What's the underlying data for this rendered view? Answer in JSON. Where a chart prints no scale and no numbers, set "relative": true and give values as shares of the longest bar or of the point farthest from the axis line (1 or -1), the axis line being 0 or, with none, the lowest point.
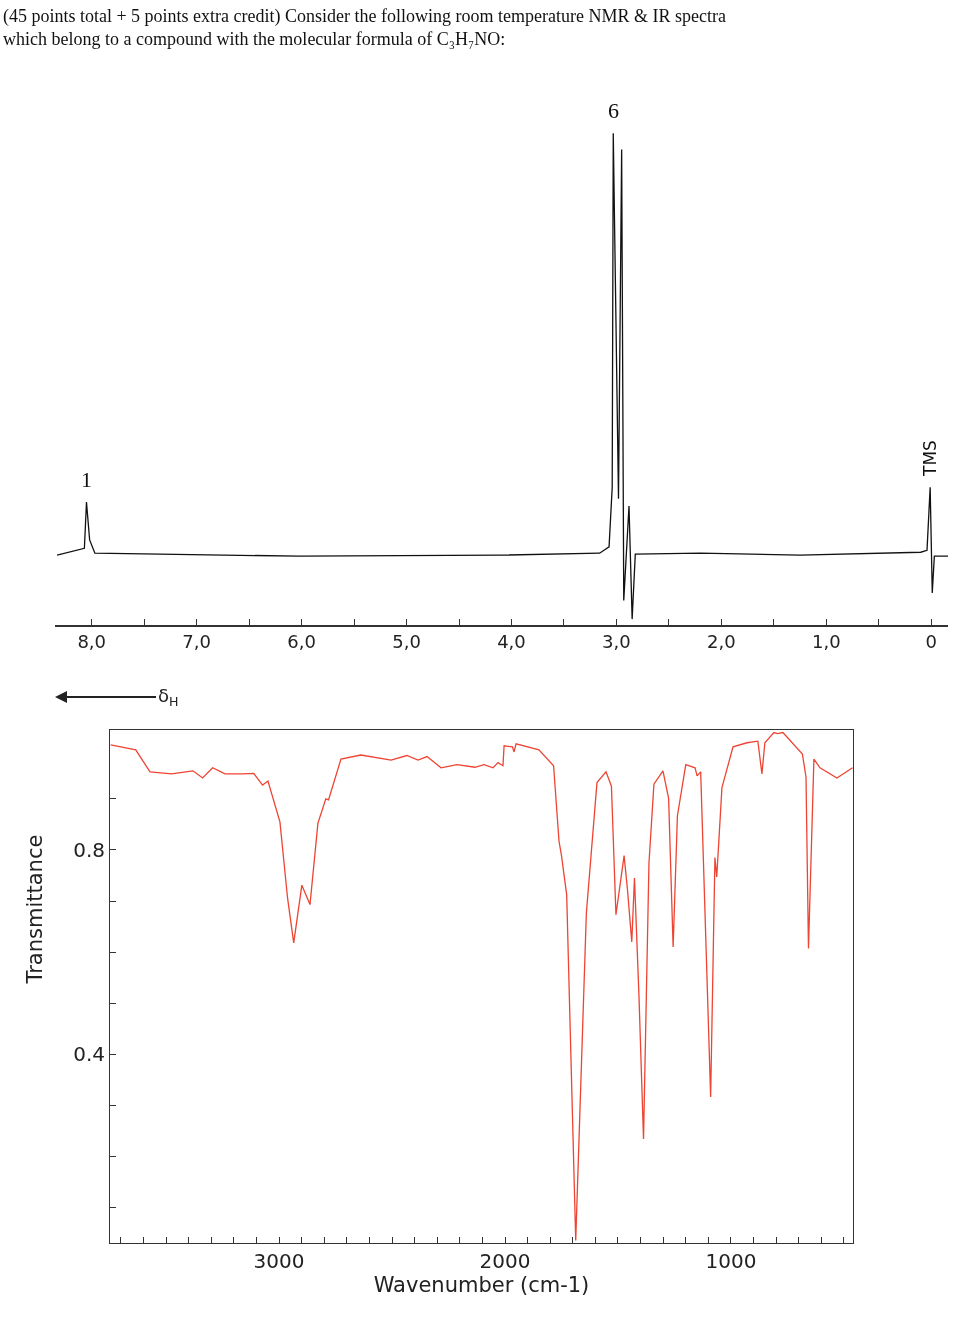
{
  "chart_data": [
    {
      "type": "line",
      "title": "(45 points total + 5 points extra credit) Consider the following room temperature NMR & IR spectra which belong to a compound with the molecular formula of C₃H₇NO:",
      "xlabel": "δ$_{H}$",
      "relative": true,
      "xlim": [
        8.35,
        -0.16
      ],
      "xticks": [
        {
          "value": 8,
          "label": "8,0"
        },
        {
          "value": 7.5,
          "label": null
        },
        {
          "value": 7,
          "label": "7,0"
        },
        {
          "value": 6.5,
          "label": null
        },
        {
          "value": 6,
          "label": "6,0"
        },
        {
          "value": 5.5,
          "label": null
        },
        {
          "value": 5,
          "label": "5,0"
        },
        {
          "value": 4.5,
          "label": null
        },
        {
          "value": 4,
          "label": "4,0"
        },
        {
          "value": 3.5,
          "label": null
        },
        {
          "value": 3,
          "label": "3,0"
        },
        {
          "value": 2.5,
          "label": null
        },
        {
          "value": 2,
          "label": "2,0"
        },
        {
          "value": 1.5,
          "label": null
        },
        {
          "value": 1,
          "label": "1,0"
        },
        {
          "value": 0.5,
          "label": null
        },
        0
      ],
      "annotations": [
        {
          "text": "1",
          "x": 8.05,
          "y": 0.25
        },
        {
          "text": "6",
          "x": 3.03,
          "y": 1
        },
        {
          "text": "TMS",
          "x": 0.01,
          "y": 0.28
        }
      ],
      "series": [
        {
          "color": "#111111",
          "x": [
            8.33,
            8.07,
            8.05,
            8.02,
            7.97,
            6.02,
            4.11,
            3.16,
            3.07,
            3.04,
            3.03,
            2.98,
            2.95,
            2.93,
            2.88,
            2.85,
            2.82,
            2.2,
            1.25,
            0.1,
            0.04,
            0.01,
            -0.01,
            -0.03,
            -0.16
          ],
          "values": [
            0.142,
            0.156,
            0.25,
            0.173,
            0.146,
            0.14,
            0.142,
            0.146,
            0.159,
            0.28,
            1,
            0.257,
            0.967,
            0.05,
            0.242,
            0.012,
            0.144,
            0.146,
            0.142,
            0.148,
            0.152,
            0.28,
            0.065,
            0.14,
            0.14
          ]
        }
      ]
    },
    {
      "type": "line",
      "xlabel": "Wavenumber (cm-1)",
      "ylabel": "Transmittance",
      "xlim": [
        3748,
        460
      ],
      "ylim": [
        0.03,
        1.035
      ],
      "xticks": [
        {
          "value": 3700,
          "label": null
        },
        {
          "value": 3600,
          "label": null
        },
        {
          "value": 3500,
          "label": null
        },
        {
          "value": 3400,
          "label": null
        },
        {
          "value": 3300,
          "label": null
        },
        {
          "value": 3200,
          "label": null
        },
        {
          "value": 3100,
          "label": null
        },
        3000,
        {
          "value": 2900,
          "label": null
        },
        {
          "value": 2800,
          "label": null
        },
        {
          "value": 2700,
          "label": null
        },
        {
          "value": 2600,
          "label": null
        },
        {
          "value": 2500,
          "label": null
        },
        {
          "value": 2400,
          "label": null
        },
        {
          "value": 2300,
          "label": null
        },
        {
          "value": 2200,
          "label": null
        },
        {
          "value": 2100,
          "label": null
        },
        2000,
        {
          "value": 1900,
          "label": null
        },
        {
          "value": 1800,
          "label": null
        },
        {
          "value": 1700,
          "label": null
        },
        {
          "value": 1600,
          "label": null
        },
        {
          "value": 1500,
          "label": null
        },
        {
          "value": 1400,
          "label": null
        },
        {
          "value": 1300,
          "label": null
        },
        {
          "value": 1200,
          "label": null
        },
        {
          "value": 1100,
          "label": null
        },
        1000,
        {
          "value": 900,
          "label": null
        },
        {
          "value": 800,
          "label": null
        },
        {
          "value": 700,
          "label": null
        },
        {
          "value": 600,
          "label": null
        },
        {
          "value": 500,
          "label": null
        }
      ],
      "yticks": [
        {
          "value": 0.1,
          "label": null
        },
        {
          "value": 0.2,
          "label": null
        },
        {
          "value": 0.3,
          "label": null
        },
        0.4,
        {
          "value": 0.5,
          "label": null
        },
        {
          "value": 0.6,
          "label": null
        },
        {
          "value": 0.7,
          "label": null
        },
        0.8,
        {
          "value": 0.9,
          "label": null
        }
      ],
      "series": [
        {
          "color": "#ee4433",
          "x": [
            3745,
            3634,
            3571,
            3476,
            3381,
            3338,
            3294,
            3239,
            3159,
            3112,
            3073,
            3049,
            2996,
            2962,
            2935,
            2899,
            2863,
            2828,
            2793,
            2781,
            2726,
            2638,
            2504,
            2434,
            2385,
            2345,
            2283,
            2212,
            2133,
            2093,
            2053,
            2031,
            2009,
            2004,
            1967,
            1960,
            1951,
            1850,
            1785,
            1761,
            1750,
            1727,
            1687,
            1640,
            1593,
            1553,
            1529,
            1509,
            1473,
            1458,
            1439,
            1427,
            1407,
            1387,
            1363,
            1341,
            1301,
            1276,
            1256,
            1237,
            1200,
            1159,
            1150,
            1134,
            1090,
            1071,
            1063,
            1040,
            991,
            929,
            881,
            863,
            850,
            810,
            794,
            770,
            684,
            668,
            657,
            633,
            606,
            531,
            462
          ],
          "values": [
            1.006,
            0.996,
            0.953,
            0.949,
            0.955,
            0.941,
            0.961,
            0.949,
            0.949,
            0.95,
            0.927,
            0.935,
            0.855,
            0.705,
            0.618,
            0.731,
            0.693,
            0.852,
            0.9,
            0.898,
            0.978,
            0.986,
            0.976,
            0.985,
            0.976,
            0.983,
            0.961,
            0.967,
            0.962,
            0.967,
            0.961,
            0.971,
            0.965,
            1.004,
            1.002,
            0.992,
            1.008,
            0.996,
            0.965,
            0.817,
            0.789,
            0.712,
            0.035,
            0.676,
            0.932,
            0.953,
            0.925,
            0.673,
            0.789,
            0.722,
            0.62,
            0.745,
            0.512,
            0.234,
            0.774,
            0.929,
            0.955,
            0.901,
            0.61,
            0.867,
            0.967,
            0.961,
            0.945,
            0.953,
            0.316,
            0.785,
            0.747,
            0.922,
            1.002,
            1.01,
            1.013,
            0.949,
            1.01,
            1.03,
            1.028,
            1.03,
            0.988,
            0.943,
            0.607,
            0.978,
            0.961,
            0.941,
            0.961
          ]
        }
      ]
    }
  ]
}
